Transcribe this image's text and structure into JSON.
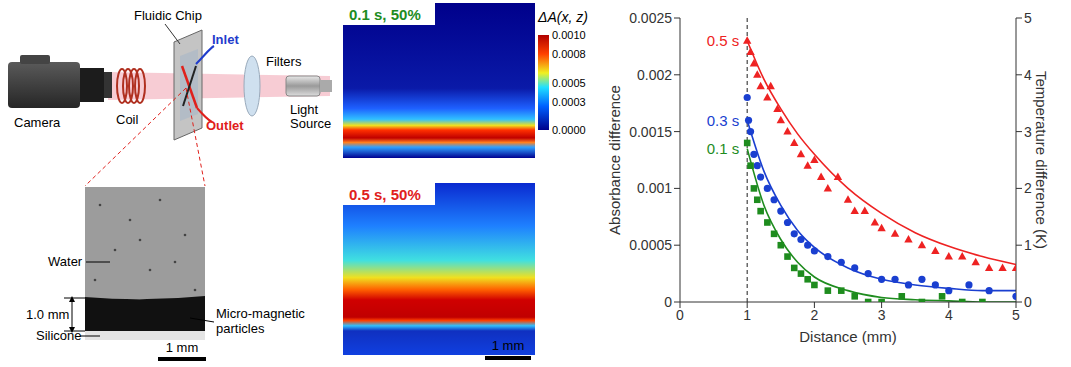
{
  "setup": {
    "camera": "Camera",
    "coil": "Coil",
    "chip": "Fluidic Chip",
    "inlet": {
      "text": "Inlet",
      "color": "#1f3ccc"
    },
    "outlet": {
      "text": "Outlet",
      "color": "#e0201b"
    },
    "filters": "Filters",
    "light_source": "Light Source"
  },
  "photo": {
    "water": "Water",
    "thickness": "1.0 mm",
    "particles": "Micro-magnetic particles",
    "silicone": "Silicone",
    "scale_bar": "1 mm"
  },
  "heatmaps": {
    "panels": [
      {
        "label": "0.1 s, 50%",
        "color": "#1e8c1e"
      },
      {
        "label": "0.5 s, 50%",
        "color": "#e0201b"
      }
    ],
    "colorbar": {
      "title": "ΔA(x, z)",
      "range": [
        0,
        0.001
      ],
      "ticks": [
        {
          "value": 0.001,
          "label": "0.0010"
        },
        {
          "value": 0.0008,
          "label": "0.0008"
        },
        {
          "value": 0.0005,
          "label": "0.0005"
        },
        {
          "value": 0.0003,
          "label": "0.0003"
        },
        {
          "value": 0,
          "label": "0.0000"
        }
      ]
    },
    "scale_bar": "1 mm"
  },
  "chart_data": {
    "type": "scatter",
    "x_label": "Distance (mm)",
    "y_label": "Absorbance difference",
    "y2_label": "Temperature difference (K)",
    "xlim": [
      0,
      5
    ],
    "xticks": [
      0,
      1,
      2,
      3,
      4,
      5
    ],
    "ylim": [
      0,
      0.0025
    ],
    "yticks": [
      0,
      0.0005,
      0.001,
      0.0015,
      0.002,
      0.0025
    ],
    "y2lim": [
      0,
      5
    ],
    "y2ticks": [
      0,
      1,
      2,
      3,
      4,
      5
    ],
    "reference_x": 1,
    "series": [
      {
        "name": "0.5 s",
        "color": "#ee2222",
        "marker": "triangle",
        "x": [
          1.0,
          1.05,
          1.1,
          1.15,
          1.2,
          1.3,
          1.35,
          1.45,
          1.5,
          1.6,
          1.7,
          1.8,
          1.9,
          2.0,
          2.1,
          2.2,
          2.35,
          2.5,
          2.6,
          2.75,
          2.9,
          3.0,
          3.2,
          3.4,
          3.6,
          3.8,
          4.0,
          4.2,
          4.4,
          4.6,
          4.8,
          5.0
        ],
        "values": [
          0.0023,
          0.0022,
          0.0021,
          0.002,
          0.0019,
          0.0018,
          0.0019,
          0.0017,
          0.0016,
          0.0015,
          0.0014,
          0.0013,
          0.0012,
          0.00125,
          0.0011,
          0.001,
          0.0011,
          0.0009,
          0.0008,
          0.0008,
          0.0007,
          0.00065,
          0.0006,
          0.00055,
          0.0005,
          0.00045,
          0.0004,
          0.0004,
          0.00035,
          0.0003,
          0.0003,
          0.0003
        ],
        "fit_x": [
          1,
          1.25,
          1.5,
          1.75,
          2,
          2.5,
          3,
          3.5,
          4,
          4.5,
          5
        ],
        "fit_values": [
          0.0023,
          0.00196,
          0.0017,
          0.00148,
          0.0013,
          0.001,
          0.00078,
          0.00061,
          0.00049,
          0.0004,
          0.00033
        ]
      },
      {
        "name": "0.3 s",
        "color": "#1a3fd0",
        "marker": "circle",
        "x": [
          1.0,
          1.02,
          1.05,
          1.1,
          1.15,
          1.2,
          1.3,
          1.4,
          1.5,
          1.6,
          1.7,
          1.8,
          1.9,
          2.0,
          2.2,
          2.4,
          2.6,
          2.8,
          3.0,
          3.2,
          3.4,
          3.6,
          3.8,
          4.0,
          4.3,
          4.6,
          5.0
        ],
        "values": [
          0.0018,
          0.0016,
          0.0015,
          0.0013,
          0.0012,
          0.0011,
          0.001,
          0.0009,
          0.0008,
          0.0007,
          0.0006,
          0.00055,
          0.0005,
          0.00045,
          0.0004,
          0.00035,
          0.0003,
          0.00025,
          0.0002,
          0.0002,
          0.00015,
          0.0002,
          0.00015,
          0.0001,
          0.00015,
          0.0001,
          5e-05
        ],
        "fit_x": [
          1,
          1.25,
          1.5,
          1.75,
          2,
          2.5,
          3,
          3.5,
          4,
          4.5,
          5
        ],
        "fit_values": [
          0.0016,
          0.00115,
          0.00085,
          0.00063,
          0.00048,
          0.0003,
          0.0002,
          0.00015,
          0.00012,
          0.0001,
          0.0001
        ]
      },
      {
        "name": "0.1 s",
        "color": "#1e8c1e",
        "marker": "square",
        "x": [
          1.0,
          1.05,
          1.1,
          1.15,
          1.2,
          1.3,
          1.4,
          1.5,
          1.6,
          1.7,
          1.8,
          1.9,
          2.0,
          2.2,
          2.4,
          2.6,
          2.8,
          3.0,
          3.3,
          3.6,
          3.9,
          4.2,
          4.5
        ],
        "values": [
          0.0014,
          0.0012,
          0.001,
          0.0009,
          0.0008,
          0.0007,
          0.0006,
          0.0005,
          0.0004,
          0.0003,
          0.00025,
          0.0002,
          0.00015,
          0.0001,
          0.0001,
          5e-05,
          0,
          0,
          5e-05,
          0,
          5e-05,
          0,
          0
        ],
        "fit_x": [
          1,
          1.25,
          1.5,
          1.75,
          2,
          2.5,
          3,
          3.5,
          4,
          4.5,
          5
        ],
        "fit_values": [
          0.00135,
          0.00085,
          0.00055,
          0.00035,
          0.00022,
          0.0001,
          4e-05,
          2e-05,
          1e-05,
          0,
          0
        ]
      }
    ]
  }
}
